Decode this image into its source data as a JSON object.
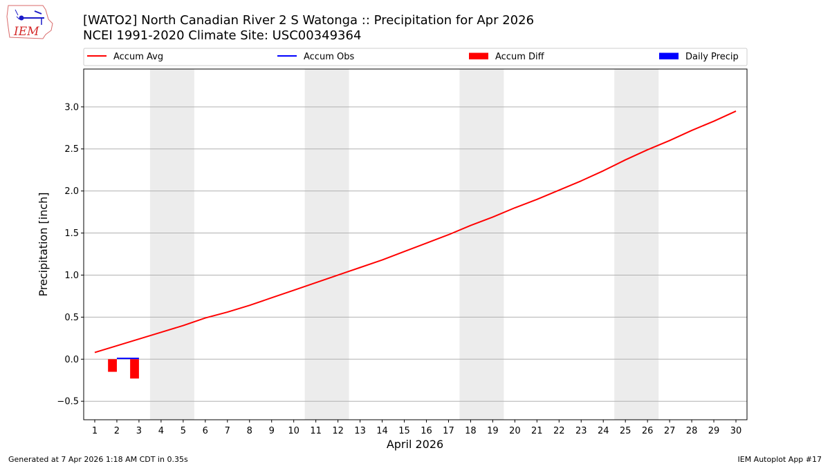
{
  "header": {
    "title_line1": "[WATO2] North Canadian River 2 S Watonga :: Precipitation for Apr 2026",
    "title_line2": "NCEI 1991-2020 Climate Site: USC00349364"
  },
  "logo": {
    "text": "IEM"
  },
  "footer": {
    "generated": "Generated at 7 Apr 2026 1:18 AM CDT in 0.35s",
    "app": "IEM Autoplot App #17"
  },
  "chart_data": {
    "type": "line",
    "title": "[WATO2] North Canadian River 2 S Watonga :: Precipitation for Apr 2026",
    "subtitle": "NCEI 1991-2020 Climate Site: USC00349364",
    "xlabel": "April 2026",
    "ylabel": "Precipitation [inch]",
    "x": [
      1,
      2,
      3,
      4,
      5,
      6,
      7,
      8,
      9,
      10,
      11,
      12,
      13,
      14,
      15,
      16,
      17,
      18,
      19,
      20,
      21,
      22,
      23,
      24,
      25,
      26,
      27,
      28,
      29,
      30
    ],
    "xlim": [
      0.5,
      30.5
    ],
    "ylim": [
      -0.72,
      3.45
    ],
    "yticks": [
      -0.5,
      0.0,
      0.5,
      1.0,
      1.5,
      2.0,
      2.5,
      3.0
    ],
    "ytick_labels": [
      "−0.5",
      "0.0",
      "0.5",
      "1.0",
      "1.5",
      "2.0",
      "2.5",
      "3.0"
    ],
    "grid": "horizontal",
    "legend_position": "top, outside plot",
    "weekend_shading": [
      [
        3.5,
        5.5
      ],
      [
        10.5,
        12.5
      ],
      [
        17.5,
        19.5
      ],
      [
        24.5,
        26.5
      ]
    ],
    "weekend_color": "#ececec",
    "series": [
      {
        "name": "Accum Avg",
        "type": "line",
        "color": "#ff0000",
        "x": [
          1,
          2,
          3,
          4,
          5,
          6,
          7,
          8,
          9,
          10,
          11,
          12,
          13,
          14,
          15,
          16,
          17,
          18,
          19,
          20,
          21,
          22,
          23,
          24,
          25,
          26,
          27,
          28,
          29,
          30
        ],
        "values": [
          0.08,
          0.16,
          0.24,
          0.32,
          0.4,
          0.49,
          0.56,
          0.64,
          0.73,
          0.82,
          0.91,
          1.0,
          1.09,
          1.18,
          1.28,
          1.38,
          1.48,
          1.59,
          1.69,
          1.8,
          1.9,
          2.01,
          2.12,
          2.24,
          2.37,
          2.49,
          2.6,
          2.72,
          2.83,
          2.95
        ]
      },
      {
        "name": "Accum Obs",
        "type": "line",
        "color": "#0000ff",
        "x": [
          2,
          3
        ],
        "values": [
          0.01,
          0.01
        ]
      },
      {
        "name": "Accum Diff",
        "type": "bar",
        "color": "#ff0000",
        "x": [
          2,
          3
        ],
        "values": [
          -0.15,
          -0.23
        ]
      },
      {
        "name": "Daily Precip",
        "type": "bar",
        "color": "#0000ff",
        "x": [
          2,
          3
        ],
        "values": [
          0.0,
          0.0
        ]
      }
    ]
  }
}
